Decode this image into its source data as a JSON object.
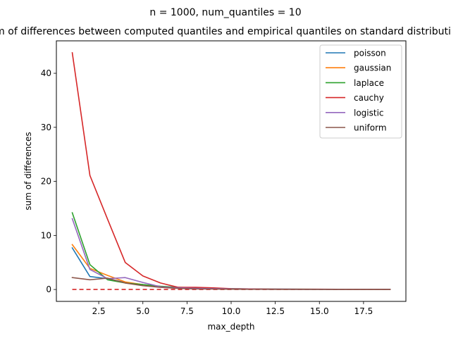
{
  "figure": {
    "suptitle": "n = 1000, num_quantiles = 10"
  },
  "chart_data": {
    "type": "line",
    "title": "Sum of differences between computed quantiles and empirical quantiles on standard distributions",
    "xlabel": "max_depth",
    "ylabel": "sum of differences",
    "xlim": [
      0.1,
      19.9
    ],
    "ylim": [
      -2.2,
      46.0
    ],
    "xticks": [
      2.5,
      5.0,
      7.5,
      10.0,
      12.5,
      15.0,
      17.5
    ],
    "xtick_labels": [
      "2.5",
      "5.0",
      "7.5",
      "10.0",
      "12.5",
      "15.0",
      "17.5"
    ],
    "yticks": [
      0,
      10,
      20,
      30,
      40
    ],
    "ytick_labels": [
      "0",
      "10",
      "20",
      "30",
      "40"
    ],
    "grid": false,
    "legend_position": "top-right",
    "x": [
      1,
      2,
      3,
      4,
      5,
      6,
      7,
      8,
      9,
      10,
      11,
      12,
      13,
      14,
      15,
      16,
      17,
      18,
      19
    ],
    "series": [
      {
        "name": "poisson",
        "color": "#1f77b4",
        "values": [
          7.7,
          2.4,
          2.0,
          1.3,
          0.9,
          0.5,
          0.3,
          0.2,
          0.15,
          0.1,
          0.08,
          0.06,
          0.05,
          0.04,
          0.04,
          0.03,
          0.03,
          0.03,
          0.03
        ]
      },
      {
        "name": "gaussian",
        "color": "#ff7f0e",
        "values": [
          8.3,
          3.9,
          2.6,
          1.4,
          0.9,
          0.5,
          0.3,
          0.2,
          0.12,
          0.08,
          0.06,
          0.05,
          0.04,
          0.03,
          0.03,
          0.03,
          0.02,
          0.02,
          0.02
        ]
      },
      {
        "name": "laplace",
        "color": "#2ca02c",
        "values": [
          14.2,
          4.6,
          1.8,
          1.2,
          0.9,
          0.6,
          0.4,
          0.3,
          0.2,
          0.15,
          0.1,
          0.08,
          0.06,
          0.05,
          0.04,
          0.04,
          0.03,
          0.03,
          0.03
        ]
      },
      {
        "name": "cauchy",
        "color": "#d62728",
        "values": [
          43.8,
          21.1,
          13.0,
          5.0,
          2.5,
          1.2,
          0.4,
          0.4,
          0.3,
          0.15,
          0.1,
          0.08,
          0.06,
          0.05,
          0.05,
          0.04,
          0.04,
          0.03,
          0.03
        ]
      },
      {
        "name": "logistic",
        "color": "#9467bd",
        "values": [
          13.1,
          3.7,
          2.0,
          2.2,
          1.3,
          0.5,
          0.3,
          0.2,
          0.15,
          0.1,
          0.08,
          0.06,
          0.05,
          0.04,
          0.04,
          0.03,
          0.03,
          0.03,
          0.03
        ]
      },
      {
        "name": "uniform",
        "color": "#8c564b",
        "values": [
          2.2,
          1.8,
          2.1,
          1.2,
          0.7,
          0.4,
          0.2,
          0.1,
          0.08,
          0.05,
          0.04,
          0.03,
          0.02,
          0.02,
          0.02,
          0.02,
          0.02,
          0.02,
          0.02
        ]
      }
    ],
    "reference_line": {
      "y": 0,
      "x_range": [
        1,
        19
      ],
      "color": "#d62728",
      "style": "dashed"
    }
  }
}
